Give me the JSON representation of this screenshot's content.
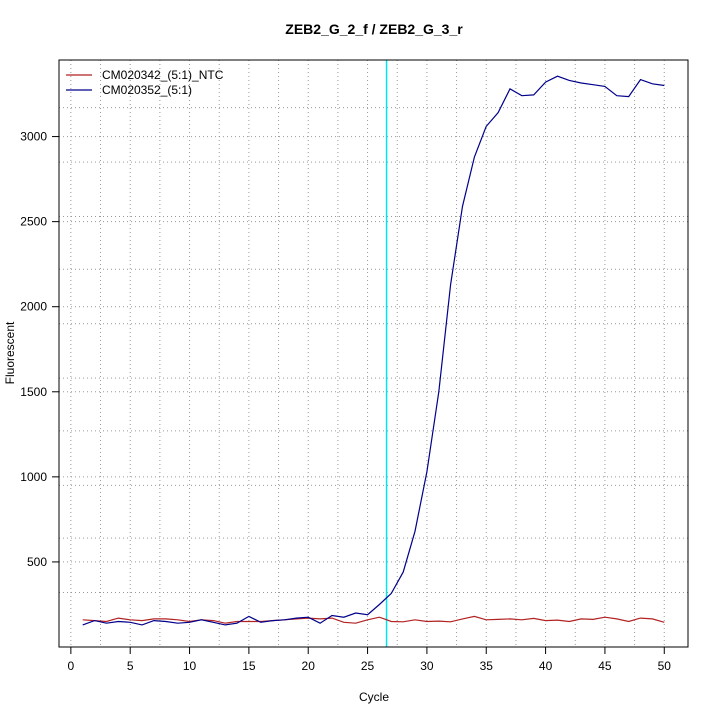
{
  "chart_data": {
    "type": "line",
    "title": "ZEB2_G_2_f / ZEB2_G_3_r",
    "xlabel": "Cycle",
    "ylabel": "Fluorescent",
    "xlim": [
      -1,
      52
    ],
    "ylim": [
      0,
      3450
    ],
    "x_ticks": [
      0,
      5,
      10,
      15,
      20,
      25,
      30,
      35,
      40,
      45,
      50
    ],
    "y_ticks": [
      500,
      1000,
      1500,
      2000,
      2500,
      3000
    ],
    "x_grid": [
      2.5,
      7.5,
      12.5,
      17.5,
      22.5,
      27.5,
      32.5,
      37.5,
      42.5,
      47.5
    ],
    "y_grid": [
      320,
      640,
      950,
      1270,
      1580,
      1900,
      2220,
      2530,
      2850,
      3170
    ],
    "grid": true,
    "legend_position": "top-left",
    "threshold": {
      "x": 26.6,
      "color": "#00e5ee"
    },
    "series": [
      {
        "name": "CM020342_(5:1)_NTC",
        "color": "#b22222",
        "x": [
          1,
          2,
          3,
          4,
          5,
          6,
          7,
          8,
          9,
          10,
          11,
          12,
          13,
          14,
          15,
          16,
          17,
          18,
          19,
          20,
          21,
          22,
          23,
          24,
          25,
          26,
          27,
          28,
          29,
          30,
          31,
          32,
          33,
          34,
          35,
          36,
          37,
          38,
          39,
          40,
          41,
          42,
          43,
          44,
          45,
          46,
          47,
          48,
          49,
          50
        ],
        "values": [
          160,
          155,
          150,
          170,
          160,
          155,
          165,
          165,
          160,
          150,
          160,
          155,
          140,
          150,
          150,
          150,
          155,
          160,
          165,
          170,
          165,
          170,
          145,
          140,
          160,
          175,
          150,
          148,
          160,
          150,
          152,
          148,
          165,
          180,
          160,
          162,
          165,
          160,
          168,
          155,
          158,
          150,
          165,
          162,
          175,
          165,
          150,
          170,
          165,
          145
        ]
      },
      {
        "name": "CM020352_(5:1)",
        "color": "#00008b",
        "x": [
          1,
          2,
          3,
          4,
          5,
          6,
          7,
          8,
          9,
          10,
          11,
          12,
          13,
          14,
          15,
          16,
          17,
          18,
          19,
          20,
          21,
          22,
          23,
          24,
          25,
          26,
          27,
          28,
          29,
          30,
          31,
          32,
          33,
          34,
          35,
          36,
          37,
          38,
          39,
          40,
          41,
          42,
          43,
          44,
          45,
          46,
          47,
          48,
          49,
          50
        ],
        "values": [
          130,
          155,
          140,
          150,
          145,
          130,
          155,
          150,
          140,
          145,
          160,
          145,
          130,
          140,
          180,
          145,
          155,
          160,
          170,
          175,
          140,
          185,
          175,
          200,
          190,
          250,
          315,
          440,
          680,
          1030,
          1500,
          2130,
          2590,
          2880,
          3060,
          3140,
          3280,
          3240,
          3245,
          3320,
          3355,
          3330,
          3315,
          3305,
          3295,
          3240,
          3235,
          3335,
          3310,
          3300
        ]
      }
    ]
  }
}
